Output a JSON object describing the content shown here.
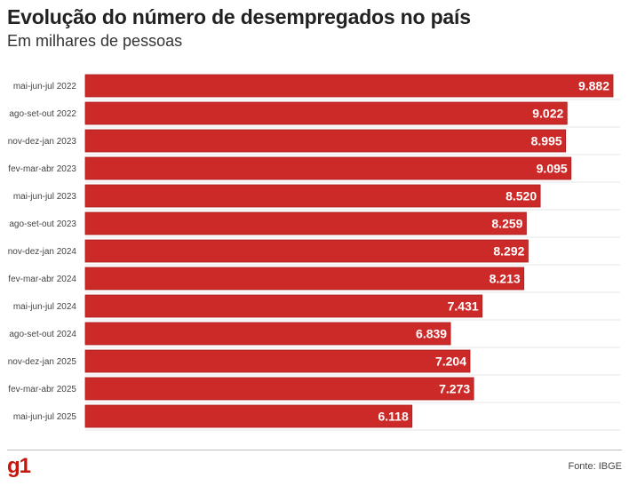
{
  "header": {
    "title": "Evolução do número de desempregados no país",
    "subtitle": "Em milhares de pessoas"
  },
  "footer": {
    "logo": "g1",
    "source": "Fonte: IBGE"
  },
  "colors": {
    "bar": "#cc2a28",
    "bar_border": "#a81e1c",
    "label": "#ffffff",
    "grid": "#e6e6e6"
  },
  "chart_data": {
    "type": "bar",
    "orientation": "horizontal",
    "title": "Evolução do número de desempregados no país",
    "subtitle": "Em milhares de pessoas",
    "categories": [
      "mai-jun-jul 2022",
      "ago-set-out 2022",
      "nov-dez-jan 2023",
      "fev-mar-abr 2023",
      "mai-jun-jul 2023",
      "ago-set-out 2023",
      "nov-dez-jan 2024",
      "fev-mar-abr 2024",
      "mai-jun-jul 2024",
      "ago-set-out 2024",
      "nov-dez-jan 2025",
      "fev-mar-abr 2025",
      "mai-jun-jul 2025"
    ],
    "values": [
      9882,
      9022,
      8995,
      9095,
      8520,
      8259,
      8292,
      8213,
      7431,
      6839,
      7204,
      7273,
      6118
    ],
    "value_labels": [
      "9.882",
      "9.022",
      "8.995",
      "9.095",
      "8.520",
      "8.259",
      "8.292",
      "8.213",
      "7.431",
      "6.839",
      "7.204",
      "7.273",
      "6.118"
    ],
    "xlim": [
      0,
      9882
    ],
    "grid": true
  }
}
